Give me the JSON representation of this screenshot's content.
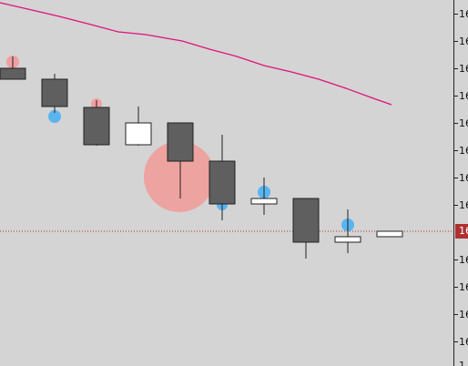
{
  "price_scale": {
    "tick_labels": [
      "16",
      "16",
      "16",
      "16",
      "16",
      "16",
      "16",
      "16",
      "16",
      "16",
      "16",
      "16",
      "16",
      "1"
    ],
    "current_price_label": "16"
  },
  "colors": {
    "background": "#d4d4d4",
    "bearish_candle": "#5f5f5f",
    "bullish_candle": "#ffffff",
    "moving_average": "#e0107a",
    "current_price_line": "#b03030",
    "sell_marker": "#f0a0a0",
    "buy_marker": "#5ab4f0",
    "signal_circle": "#eda3a0"
  }
}
